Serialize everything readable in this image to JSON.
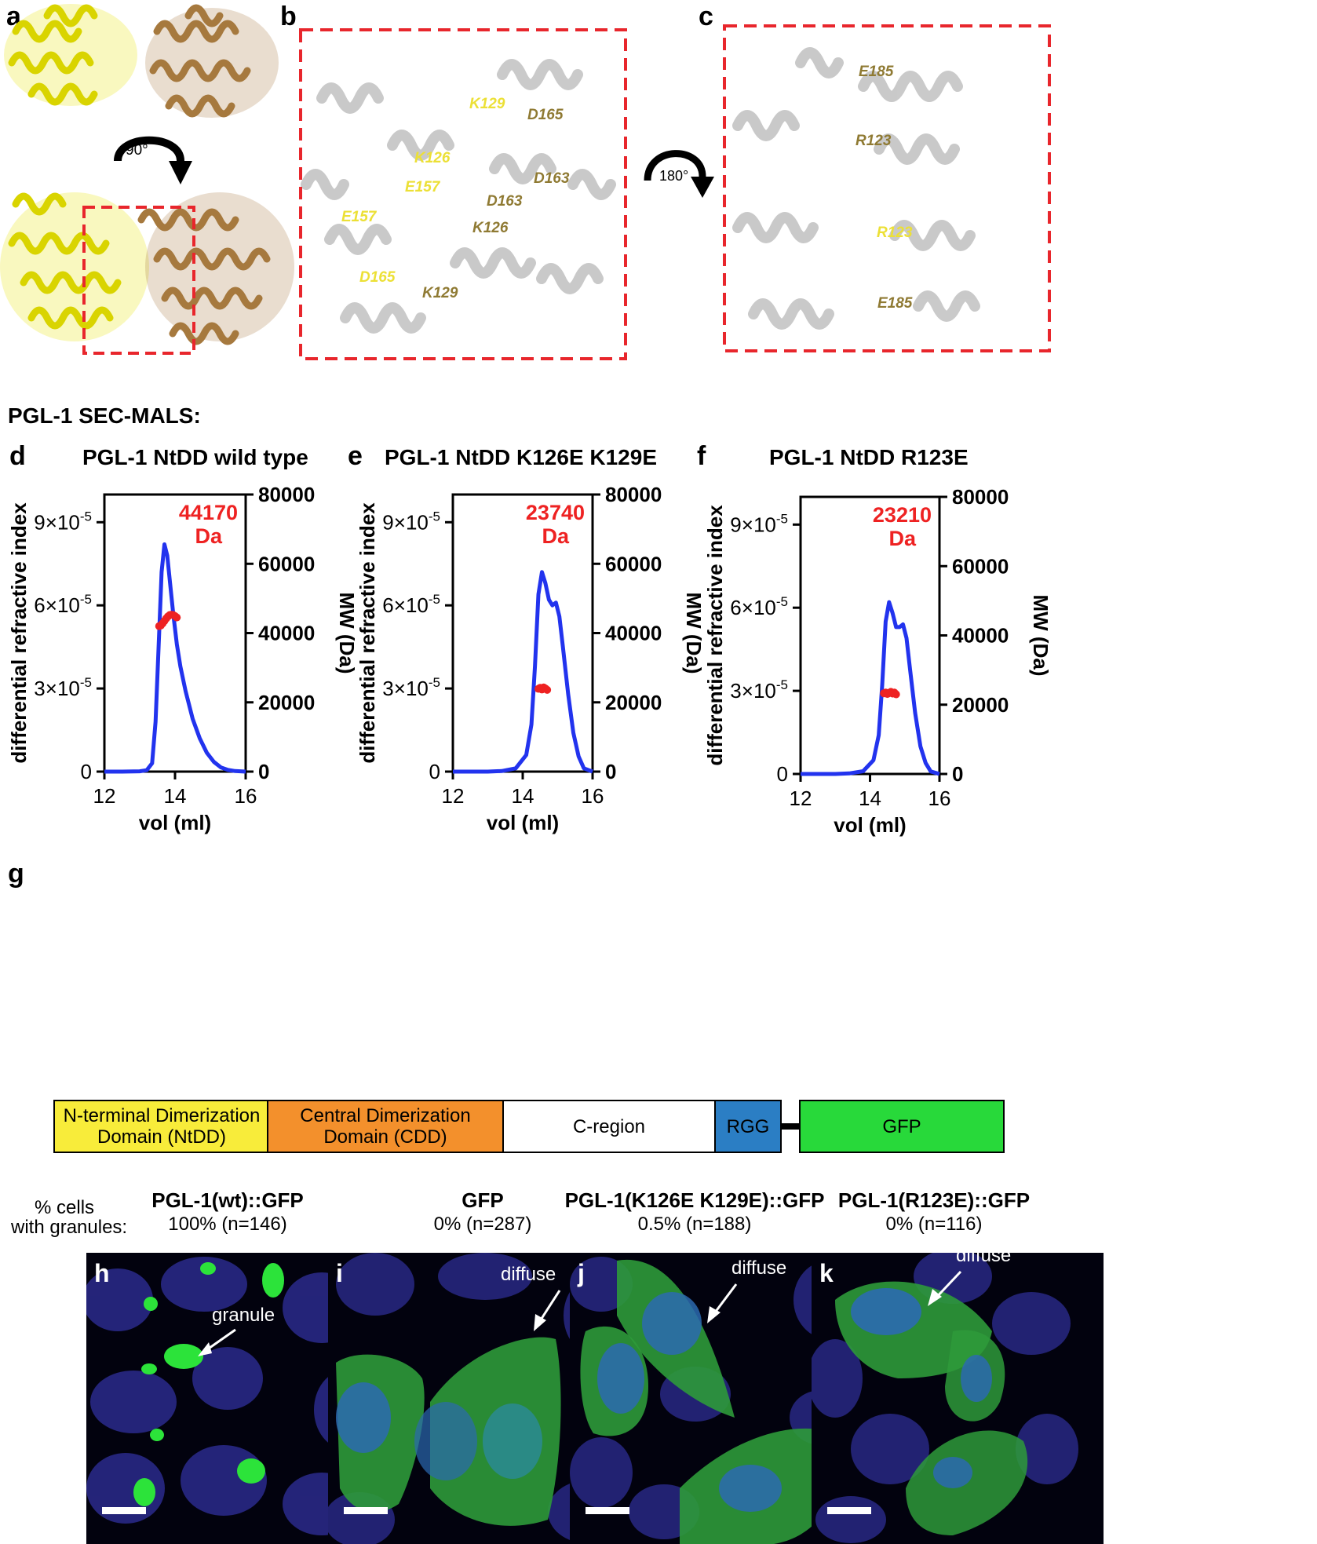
{
  "panel_labels": {
    "a": "a",
    "b": "b",
    "c": "c",
    "d": "d",
    "e": "e",
    "f": "f",
    "g": "g",
    "h": "h",
    "i": "i",
    "j": "j",
    "k": "k"
  },
  "structure": {
    "rotation_a": "90°",
    "rotation_c": "180°",
    "colors": {
      "chain_a": "#e6e200",
      "chain_b": "#a6793e",
      "zoom_box": "#e8262c",
      "residue_light": "#ece036",
      "residue_dark": "#8f7a33",
      "helix": "#c8c8c8"
    },
    "residues_b": [
      "K129",
      "D165",
      "K126",
      "E157",
      "D163",
      "E157",
      "D163",
      "K126",
      "D165",
      "K129"
    ],
    "residues_c": [
      "E185",
      "R123",
      "R123",
      "E185"
    ]
  },
  "section_title": "PGL-1 SEC-MALS:",
  "charts_titles": [
    "PGL-1 NtDD wild type",
    "PGL-1 NtDD K126E K129E",
    "PGL-1 NtDD R123E"
  ],
  "chart_axes": {
    "xlabel": "vol (ml)",
    "ylabel_left": "differential refractive index",
    "ylabel_right": "MW (Da)",
    "x_ticks": [
      "12",
      "14",
      "16"
    ],
    "left_ticks": [
      "0",
      "3×10",
      "6×10",
      "9×10"
    ],
    "left_exp": "-5",
    "right_ticks": [
      "0",
      "20000",
      "40000",
      "60000",
      "80000"
    ]
  },
  "chart_data": [
    {
      "type": "line",
      "title": "PGL-1 NtDD wild type",
      "xlabel": "vol (ml)",
      "ylabel": "differential refractive index",
      "y2label": "MW (Da)",
      "xlim": [
        12,
        16
      ],
      "ylim": [
        0,
        0.0001
      ],
      "y2lim": [
        0,
        80000
      ],
      "series": [
        {
          "name": "",
          "color": "#2233ee",
          "axis": "left",
          "x": [
            12,
            12.5,
            13,
            13.2,
            13.35,
            13.45,
            13.55,
            13.62,
            13.7,
            13.78,
            13.86,
            13.95,
            14.05,
            14.15,
            14.3,
            14.5,
            14.7,
            14.9,
            15.1,
            15.3,
            15.5,
            15.7,
            16
          ],
          "y": [
            0,
            0,
            1e-07,
            5e-07,
            3e-06,
            1.8e-05,
            5e-05,
            7.2e-05,
            8.2e-05,
            7.8e-05,
            6.8e-05,
            5.7e-05,
            4.6e-05,
            3.8e-05,
            2.9e-05,
            1.9e-05,
            1.2e-05,
            6.8e-06,
            3.5e-06,
            1.5e-06,
            6e-07,
            2e-07,
            0
          ]
        },
        {
          "name": "",
          "color": "#ee2222",
          "axis": "right",
          "x": [
            13.55,
            13.6,
            13.65,
            13.7,
            13.75,
            13.8,
            13.85,
            13.9,
            13.95,
            14.0,
            14.05
          ],
          "y": [
            42000,
            42200,
            42800,
            43500,
            44200,
            44800,
            45200,
            45300,
            45200,
            44900,
            44500
          ]
        }
      ],
      "annotation": {
        "value": "44170",
        "unit": "Da"
      }
    },
    {
      "type": "line",
      "title": "PGL-1 NtDD K126E K129E",
      "xlabel": "vol (ml)",
      "ylabel": "differential refractive index",
      "y2label": "MW (Da)",
      "xlim": [
        12,
        16
      ],
      "ylim": [
        0,
        0.0001
      ],
      "y2lim": [
        0,
        80000
      ],
      "series": [
        {
          "name": "",
          "color": "#2233ee",
          "axis": "left",
          "x": [
            12,
            13,
            13.4,
            13.8,
            14.1,
            14.25,
            14.35,
            14.45,
            14.55,
            14.65,
            14.75,
            14.85,
            14.95,
            15.05,
            15.15,
            15.3,
            15.45,
            15.6,
            15.75,
            16
          ],
          "y": [
            0,
            0,
            2e-07,
            1.2e-06,
            6e-06,
            1.7e-05,
            3.8e-05,
            6.4e-05,
            7.2e-05,
            6.8e-05,
            6.2e-05,
            6e-05,
            6.1e-05,
            5.6e-05,
            4.5e-05,
            2.8e-05,
            1.4e-05,
            5.5e-06,
            1.2e-06,
            0
          ]
        },
        {
          "name": "",
          "color": "#ee2222",
          "axis": "right",
          "x": [
            14.45,
            14.5,
            14.55,
            14.6,
            14.65,
            14.7
          ],
          "y": [
            23900,
            24200,
            23700,
            24300,
            24000,
            23600
          ]
        }
      ],
      "annotation": {
        "value": "23740",
        "unit": "Da"
      }
    },
    {
      "type": "line",
      "title": "PGL-1 NtDD R123E",
      "xlabel": "vol (ml)",
      "ylabel": "differential refractive index",
      "y2label": "MW (Da)",
      "xlim": [
        12,
        16
      ],
      "ylim": [
        0,
        0.0001
      ],
      "y2lim": [
        0,
        80000
      ],
      "series": [
        {
          "name": "",
          "color": "#2233ee",
          "axis": "left",
          "x": [
            12,
            13,
            13.4,
            13.8,
            14.1,
            14.25,
            14.35,
            14.45,
            14.55,
            14.65,
            14.75,
            14.85,
            14.95,
            15.05,
            15.15,
            15.3,
            15.45,
            15.6,
            15.75,
            16
          ],
          "y": [
            0,
            0,
            2e-07,
            1e-06,
            5e-06,
            1.4e-05,
            3.2e-05,
            5.5e-05,
            6.2e-05,
            5.8e-05,
            5.3e-05,
            5.3e-05,
            5.4e-05,
            4.9e-05,
            3.8e-05,
            2.2e-05,
            1e-05,
            4e-06,
            9e-07,
            0
          ]
        },
        {
          "name": "",
          "color": "#ee2222",
          "axis": "right",
          "x": [
            14.4,
            14.45,
            14.5,
            14.55,
            14.6,
            14.65,
            14.7,
            14.75
          ],
          "y": [
            23300,
            23500,
            23100,
            23400,
            23700,
            23200,
            23500,
            23000
          ]
        }
      ],
      "annotation": {
        "value": "23210",
        "unit": "Da"
      }
    }
  ],
  "domains": [
    {
      "label": "N-terminal Dimerization\nDomain (NtDD)",
      "color": "#f8ec3a"
    },
    {
      "label": "Central Dimerization\nDomain (CDD)",
      "color": "#f3902c"
    },
    {
      "label": "C-region",
      "color": "#ffffff"
    },
    {
      "label": "RGG",
      "color": "#2b7ec4"
    },
    {
      "label": "GFP",
      "color": "#28d93a"
    }
  ],
  "cells_header": {
    "line1": "% cells",
    "line2": "with granules:"
  },
  "conditions": [
    {
      "name": "PGL-1(wt)::GFP",
      "value": "100% (n=146)"
    },
    {
      "name": "GFP",
      "value": "0% (n=287)"
    },
    {
      "name": "PGL-1(K126E K129E)::GFP",
      "value": "0.5% (n=188)"
    },
    {
      "name": "PGL-1(R123E)::GFP",
      "value": "0% (n=116)"
    }
  ],
  "micrographs": [
    {
      "label": "h",
      "arrow_text": "granule"
    },
    {
      "label": "i",
      "arrow_text": "diffuse"
    },
    {
      "label": "j",
      "arrow_text": "diffuse"
    },
    {
      "label": "k",
      "arrow_text": "diffuse"
    }
  ]
}
